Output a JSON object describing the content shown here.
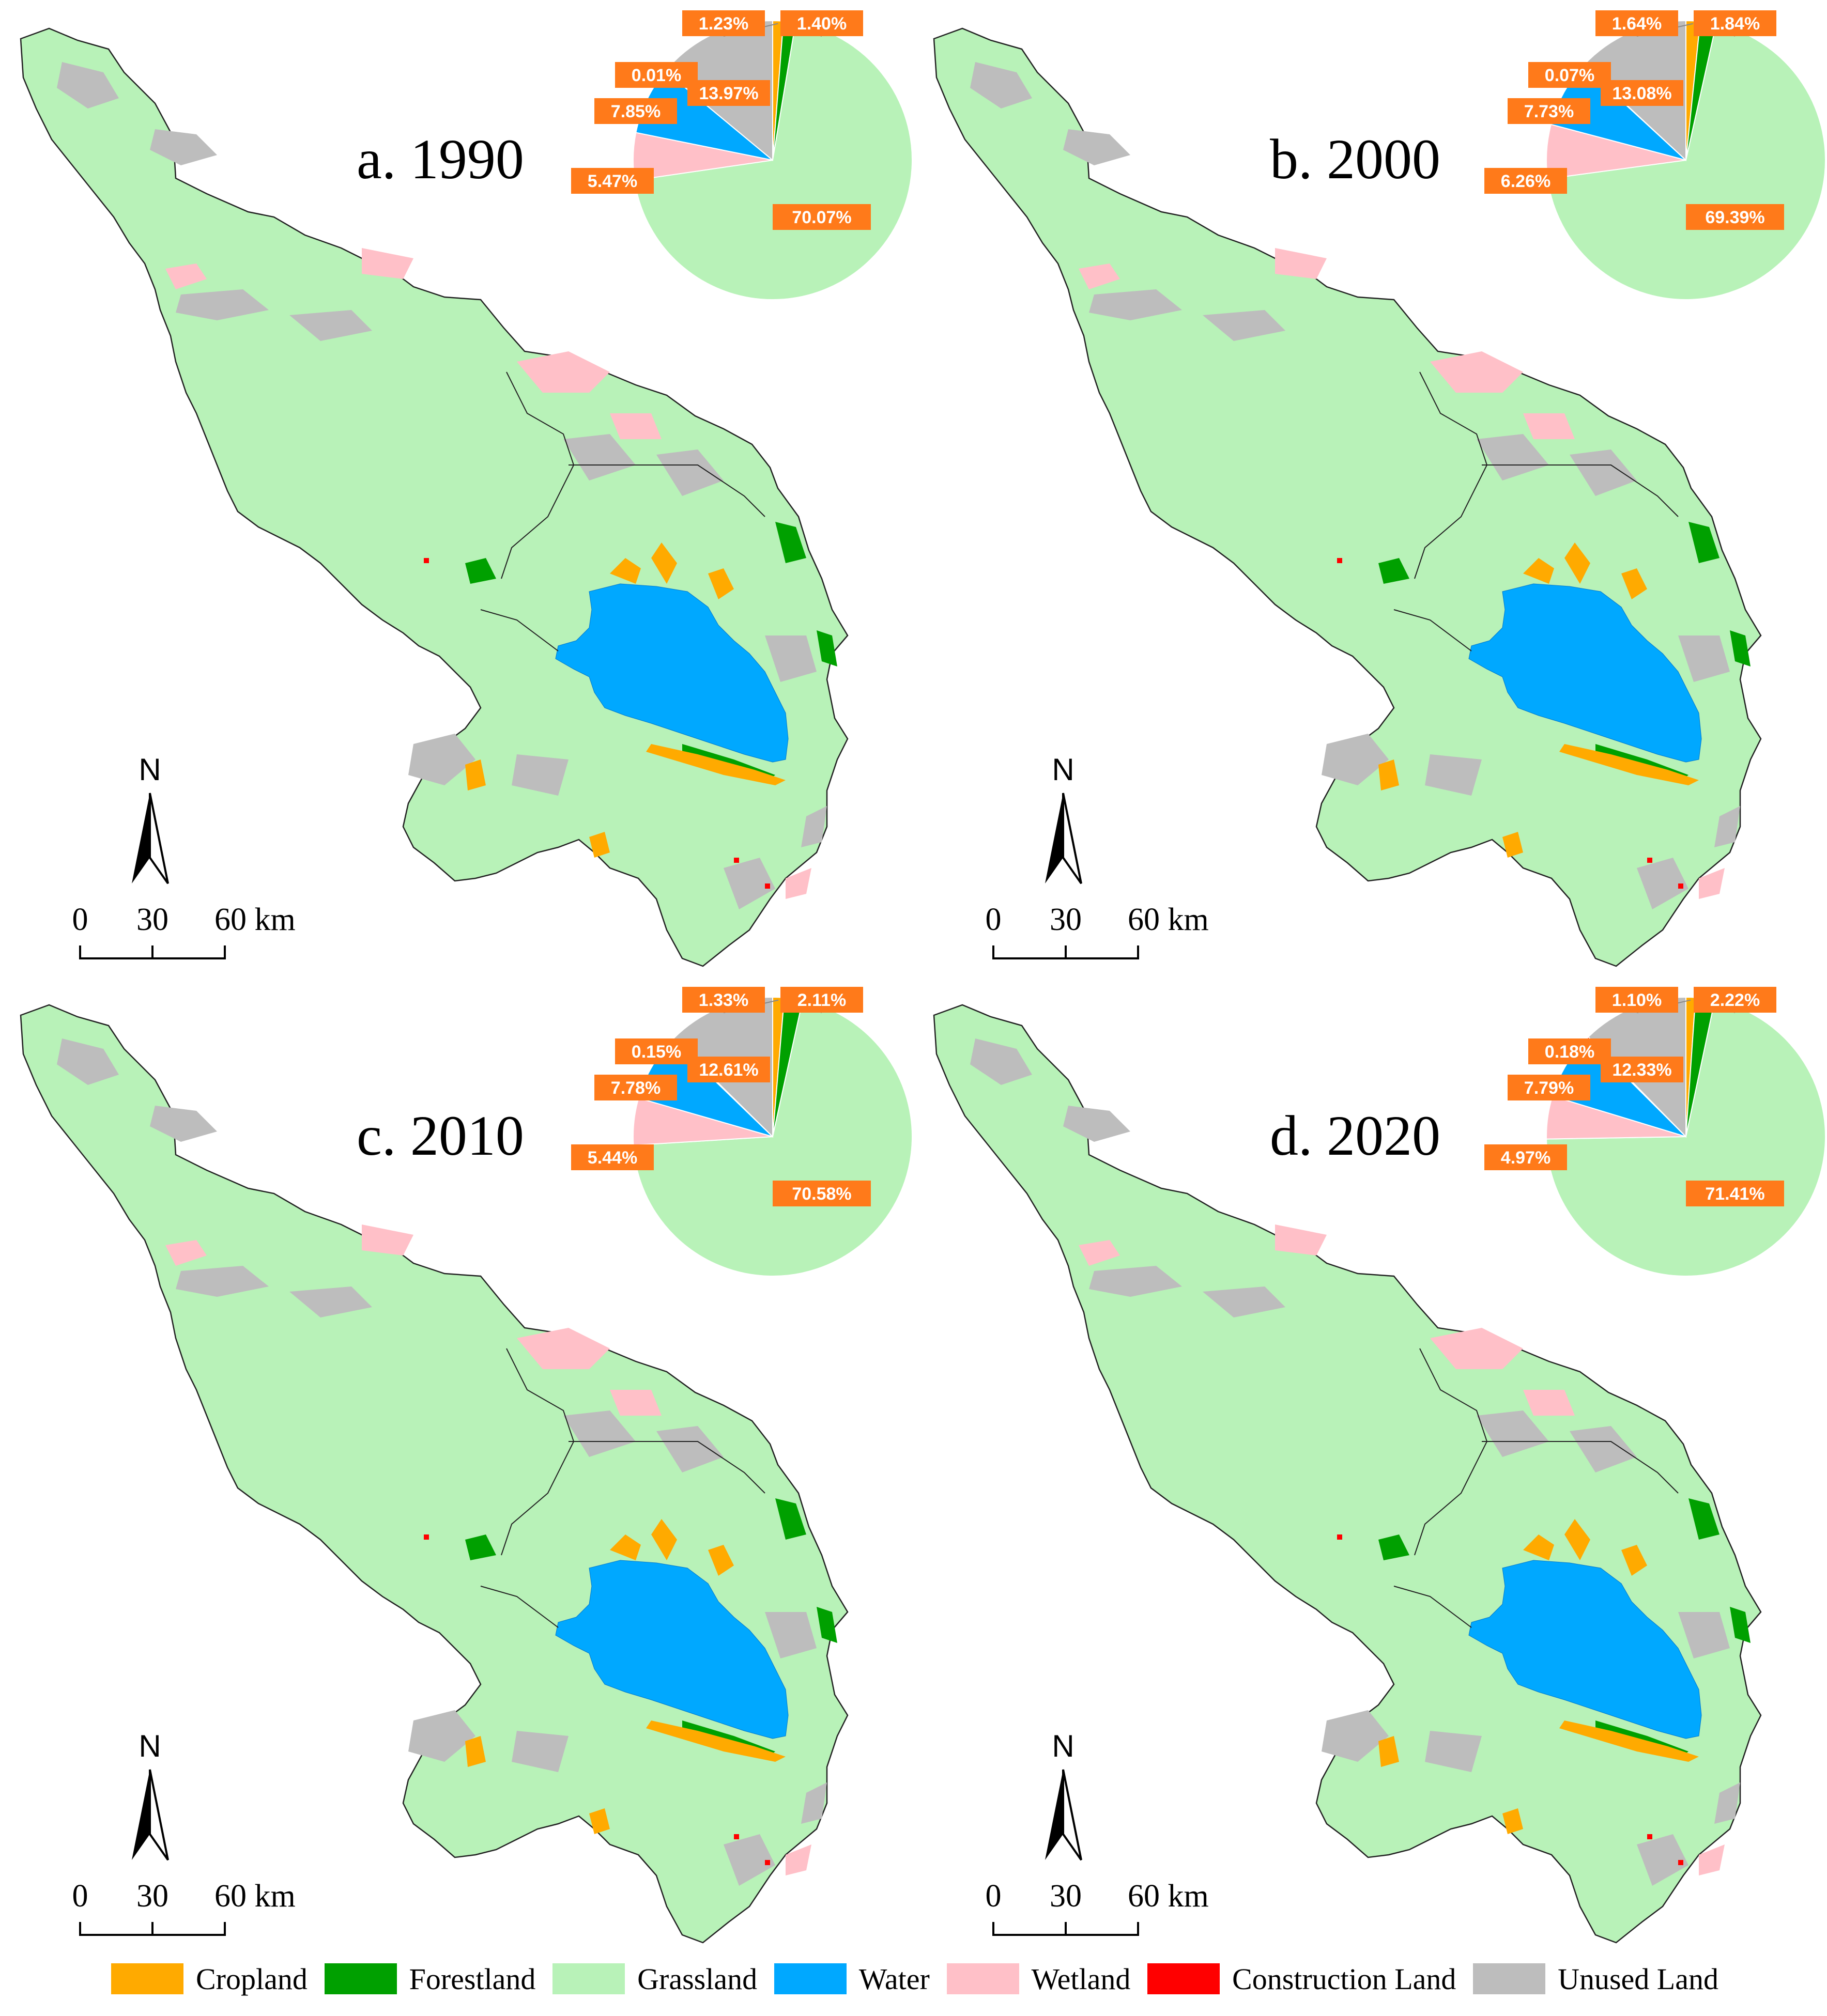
{
  "colors": {
    "cropland": "#ffaa00",
    "forestland": "#00a000",
    "grassland": "#b8f2b8",
    "water": "#00a8ff",
    "wetland": "#ffc0c8",
    "construction": "#ff0000",
    "unused": "#bdbdbd",
    "label_bg": "#ff7a1a"
  },
  "panels": [
    {
      "title": "a. 1990",
      "pie": {
        "cropland": "1.23%",
        "forestland": "1.40%",
        "grassland": "70.07%",
        "wetland": "5.47%",
        "water": "7.85%",
        "construction": "0.01%",
        "unused": "13.97%"
      },
      "pie_values": [
        1.23,
        1.4,
        70.07,
        5.47,
        7.85,
        0.01,
        13.97
      ]
    },
    {
      "title": "b. 2000",
      "pie": {
        "cropland": "1.64%",
        "forestland": "1.84%",
        "grassland": "69.39%",
        "wetland": "6.26%",
        "water": "7.73%",
        "construction": "0.07%",
        "unused": "13.08%"
      },
      "pie_values": [
        1.64,
        1.84,
        69.39,
        6.26,
        7.73,
        0.07,
        13.08
      ]
    },
    {
      "title": "c. 2010",
      "pie": {
        "cropland": "1.33%",
        "forestland": "2.11%",
        "grassland": "70.58%",
        "wetland": "5.44%",
        "water": "7.78%",
        "construction": "0.15%",
        "unused": "12.61%"
      },
      "pie_values": [
        1.33,
        2.11,
        70.58,
        5.44,
        7.78,
        0.15,
        12.61
      ]
    },
    {
      "title": "d. 2020",
      "pie": {
        "cropland": "1.10%",
        "forestland": "2.22%",
        "grassland": "71.41%",
        "wetland": "4.97%",
        "water": "7.79%",
        "construction": "0.18%",
        "unused": "12.33%"
      },
      "pie_values": [
        1.1,
        2.22,
        71.41,
        4.97,
        7.79,
        0.18,
        12.33
      ]
    }
  ],
  "north_arrow": {
    "label": "N"
  },
  "scale_bar": {
    "t0": "0",
    "t1": "30",
    "t2": "60 km"
  },
  "legend": [
    {
      "label": "Cropland",
      "color": "#ffaa00"
    },
    {
      "label": "Forestland",
      "color": "#00a000"
    },
    {
      "label": "Grassland",
      "color": "#b8f2b8"
    },
    {
      "label": "Water",
      "color": "#00a8ff"
    },
    {
      "label": "Wetland",
      "color": "#ffc0c8"
    },
    {
      "label": "Construction Land",
      "color": "#ff0000"
    },
    {
      "label": "Unused Land",
      "color": "#bdbdbd"
    }
  ]
}
